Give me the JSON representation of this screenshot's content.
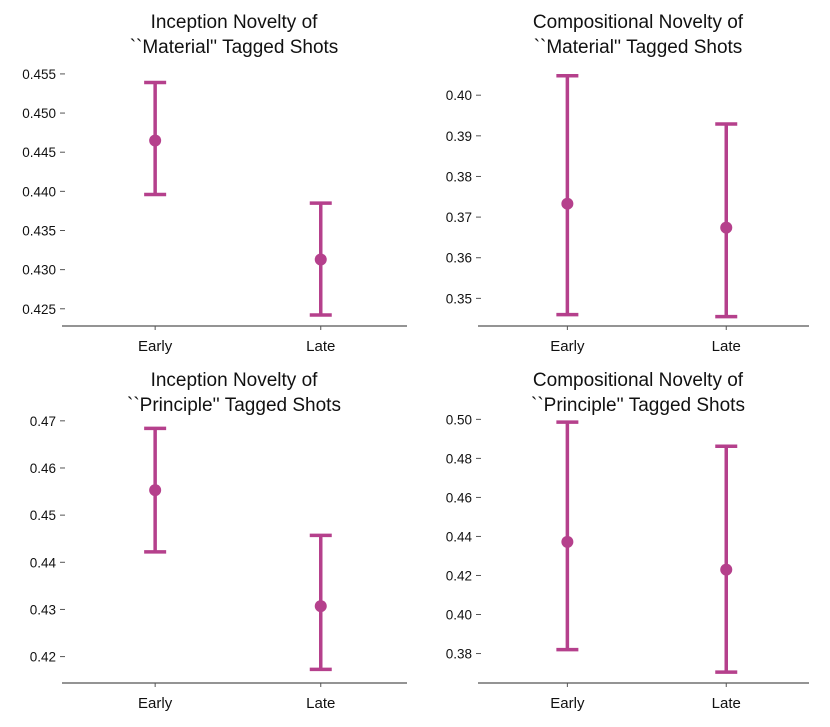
{
  "colors": {
    "marker": "#B5408C",
    "axis": "#555555",
    "text": "#111111"
  },
  "chart_data": [
    {
      "type": "errorbar",
      "title_lines": [
        "Inception Novelty of",
        "``Material'' Tagged Shots"
      ],
      "categories": [
        "Early",
        "Late"
      ],
      "means": [
        0.4465,
        0.4313
      ],
      "lower": [
        0.4396,
        0.4242
      ],
      "upper": [
        0.4539,
        0.4385
      ],
      "yticks": [
        0.425,
        0.43,
        0.435,
        0.44,
        0.445,
        0.45,
        0.455
      ],
      "ytick_labels": [
        "0.425",
        "0.430",
        "0.435",
        "0.440",
        "0.445",
        "0.450",
        "0.455"
      ],
      "ylim": [
        0.4228,
        0.4555
      ]
    },
    {
      "type": "errorbar",
      "title_lines": [
        "Compositional Novelty of",
        "``Material'' Tagged Shots"
      ],
      "categories": [
        "Early",
        "Late"
      ],
      "means": [
        0.3733,
        0.3674
      ],
      "lower": [
        0.346,
        0.3455
      ],
      "upper": [
        0.4048,
        0.3929
      ],
      "yticks": [
        0.35,
        0.36,
        0.37,
        0.38,
        0.39,
        0.4
      ],
      "ytick_labels": [
        "0.35",
        "0.36",
        "0.37",
        "0.38",
        "0.39",
        "0.40"
      ],
      "ylim": [
        0.3432,
        0.4062
      ]
    },
    {
      "type": "errorbar",
      "title_lines": [
        "Inception Novelty of",
        "``Principle'' Tagged Shots"
      ],
      "categories": [
        "Early",
        "Late"
      ],
      "means": [
        0.4553,
        0.4307
      ],
      "lower": [
        0.4422,
        0.4173
      ],
      "upper": [
        0.4684,
        0.4457
      ],
      "yticks": [
        0.42,
        0.43,
        0.44,
        0.45,
        0.46,
        0.47
      ],
      "ytick_labels": [
        "0.42",
        "0.43",
        "0.44",
        "0.45",
        "0.46",
        "0.47"
      ],
      "ylim": [
        0.4144,
        0.4706
      ]
    },
    {
      "type": "errorbar",
      "title_lines": [
        "Compositional Novelty of",
        "``Principle'' Tagged Shots"
      ],
      "categories": [
        "Early",
        "Late"
      ],
      "means": [
        0.4372,
        0.423
      ],
      "lower": [
        0.382,
        0.3705
      ],
      "upper": [
        0.4986,
        0.4862
      ],
      "yticks": [
        0.38,
        0.4,
        0.42,
        0.44,
        0.46,
        0.48,
        0.5
      ],
      "ytick_labels": [
        "0.38",
        "0.40",
        "0.42",
        "0.44",
        "0.46",
        "0.48",
        "0.50"
      ],
      "ylim": [
        0.3649,
        0.5007
      ]
    }
  ]
}
